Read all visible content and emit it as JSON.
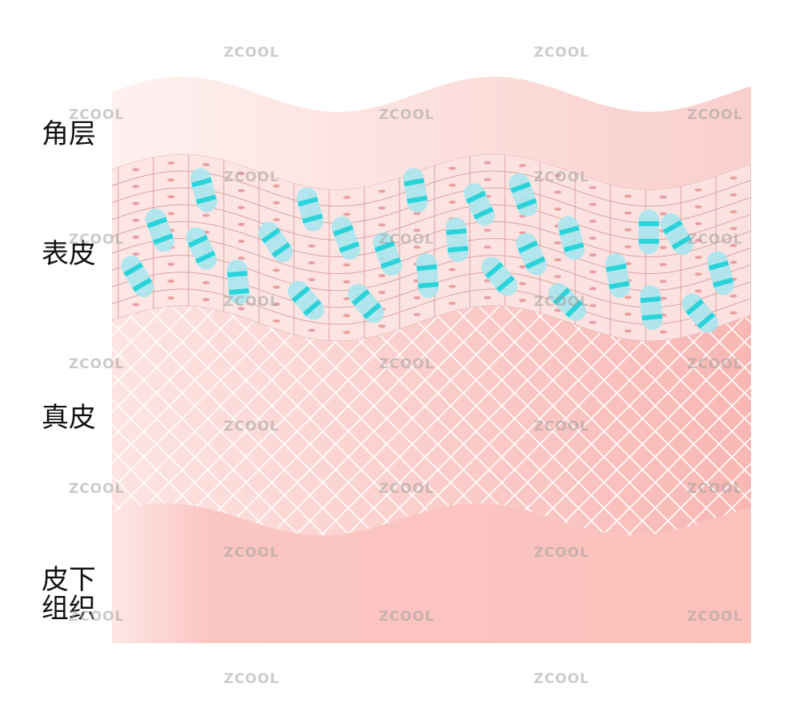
{
  "diagram": {
    "labels": {
      "stratum_corneum": "角层",
      "epidermis": "表皮",
      "dermis": "真皮",
      "subcutaneous": "皮下组织"
    },
    "watermark": "ZCOOL",
    "colors": {
      "stratum_corneum": "#fbd9d6",
      "epidermis": "#fde3e1",
      "cell_border": "#d9a3a0",
      "cell_nucleus": "#e9a0a0",
      "dermis": "#fbc8c4",
      "dermis_mesh": "#ffffff",
      "subcutaneous": "#fbc2be",
      "capsule_body": "#a9e6ee",
      "capsule_band": "#2ad3d9"
    },
    "capsule_icon": "capsule-icon"
  }
}
